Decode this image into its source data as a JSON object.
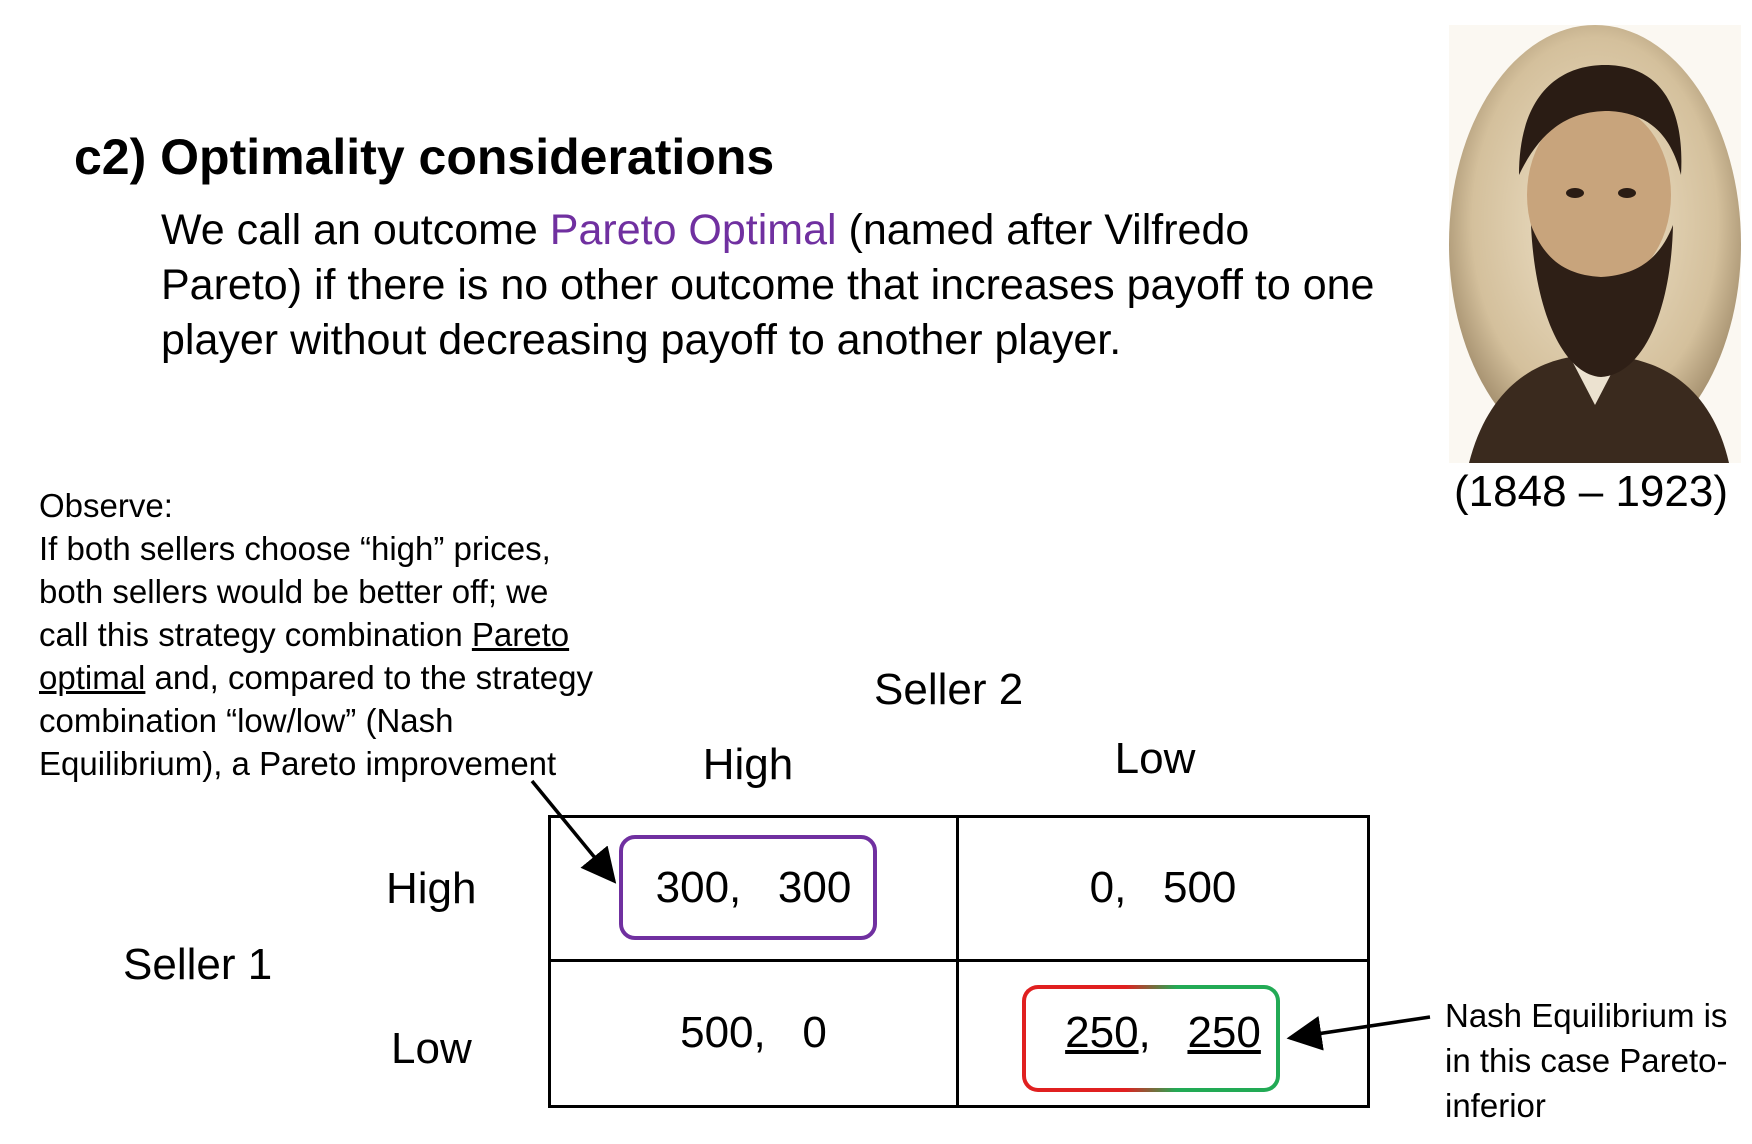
{
  "heading": "c2) Optimality considerations",
  "definition": {
    "before": "We call an outcome ",
    "highlight": "Pareto Optimal",
    "after": " (named after Vilfredo Pareto) if there is no other outcome that increases payoff to one player without decreasing payoff to another player.",
    "highlight_color": "#7030a0"
  },
  "portrait": {
    "years": "(1848 – 1923)"
  },
  "observe": {
    "title": "Observe:",
    "line1": "If both sellers choose “high” prices, both sellers would be better off; we call this strategy combination ",
    "underlined": "Pareto optimal",
    "line2": " and, compared to the strategy combination “low/low” (Nash Equilibrium), a Pareto improvement"
  },
  "matrix": {
    "col_player": "Seller 2",
    "row_player": "Seller 1",
    "col_labels": [
      "High",
      "Low"
    ],
    "row_labels": [
      "High",
      "Low"
    ],
    "cells": {
      "high_high": "300,   300",
      "high_low": "0,   500",
      "low_high": "500,   0",
      "low_low_a": "250",
      "low_low_sep": ",   ",
      "low_low_b": "250"
    }
  },
  "nash_note": "Nash Equilibrium is in this case Pareto-inferior",
  "colors": {
    "pareto_box": "#7030a0",
    "nash_red": "#e02020",
    "nash_green": "#22aa55"
  }
}
